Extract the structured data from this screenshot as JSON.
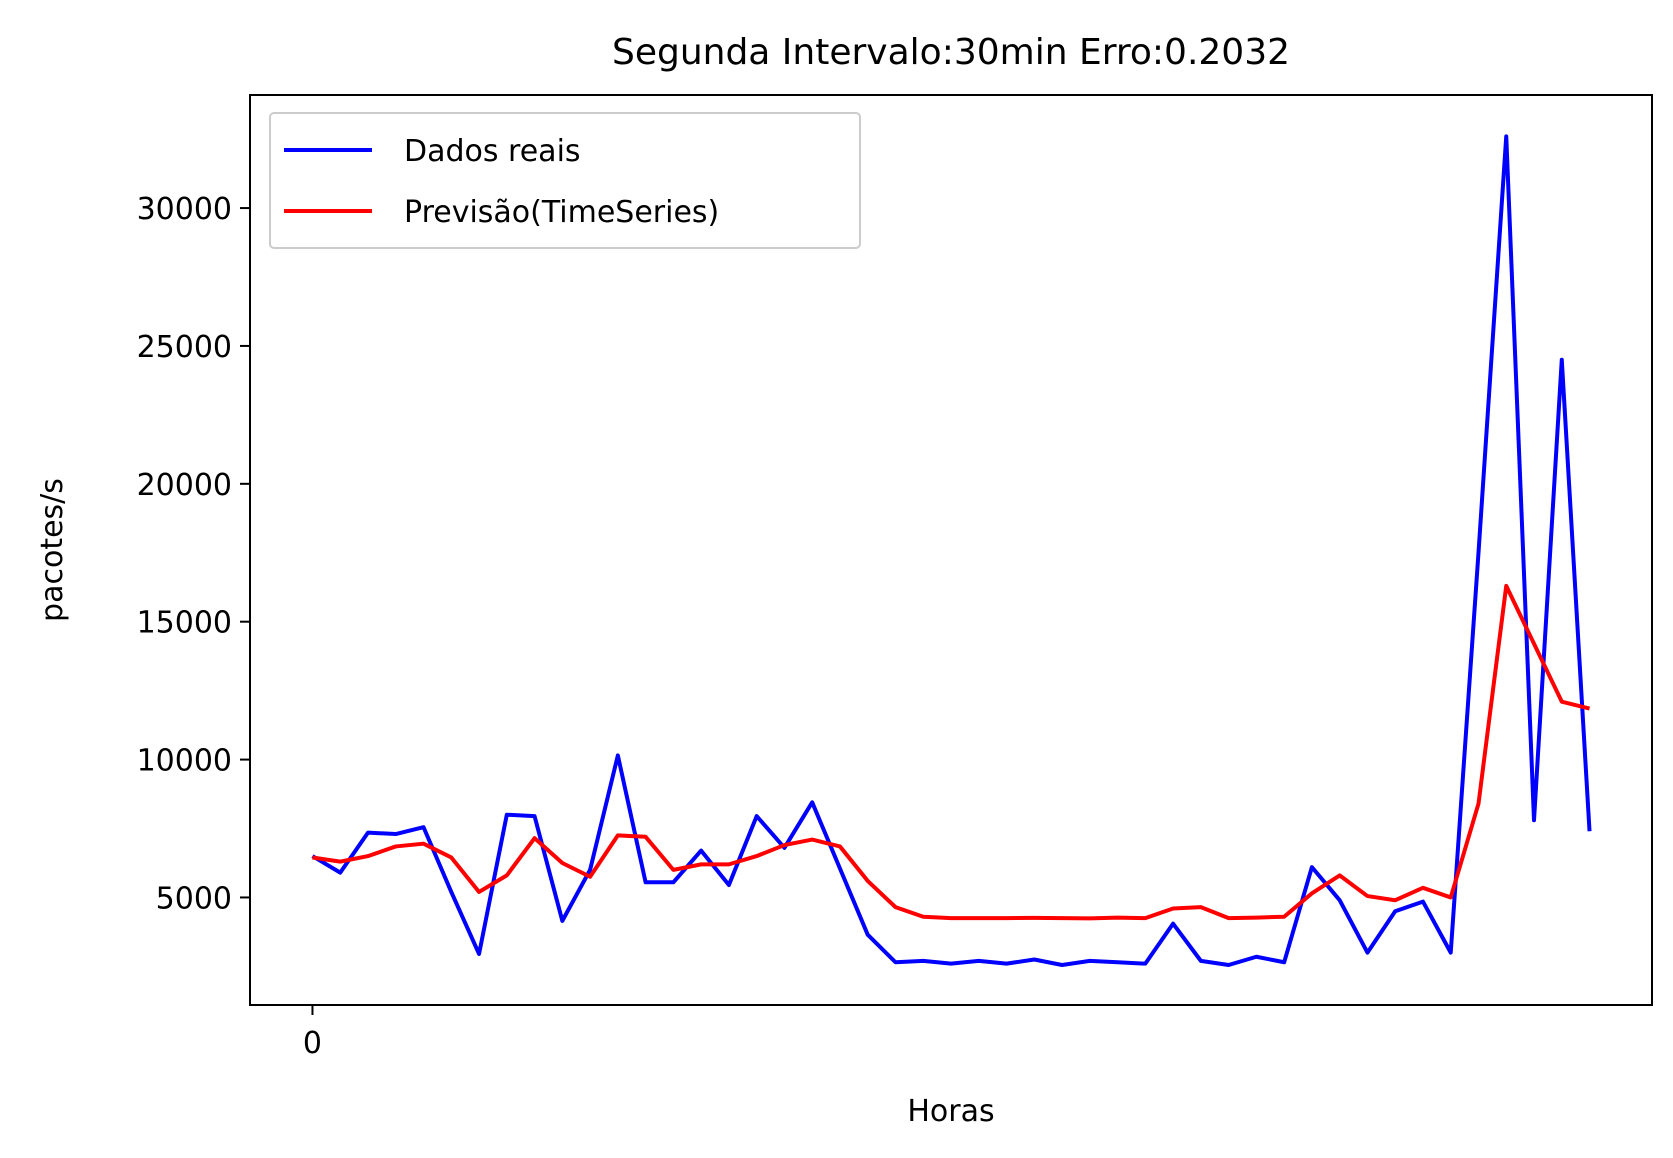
{
  "chart_data": {
    "type": "line",
    "title": "Segunda Intervalo:30min Erro:0.2032",
    "xlabel": "Horas",
    "ylabel": "pacotes/s",
    "xlim": [
      -2.25,
      48.25
    ],
    "ylim": [
      1100,
      34100
    ],
    "xticks": [
      0
    ],
    "xtick_labels": [
      "0"
    ],
    "yticks": [
      5000,
      10000,
      15000,
      20000,
      25000,
      30000
    ],
    "ytick_labels": [
      "5000",
      "10000",
      "15000",
      "20000",
      "25000",
      "30000"
    ],
    "grid": false,
    "legend_position": "upper-left",
    "x": [
      0,
      1,
      2,
      3,
      4,
      5,
      6,
      7,
      8,
      9,
      10,
      11,
      12,
      13,
      14,
      15,
      16,
      17,
      18,
      19,
      20,
      21,
      22,
      23,
      24,
      25,
      26,
      27,
      28,
      29,
      30,
      31,
      32,
      33,
      34,
      35,
      36,
      37,
      38,
      39,
      40,
      41,
      42,
      43,
      44,
      45,
      46
    ],
    "series": [
      {
        "name": "Dados reais",
        "color": "#0000ff",
        "values": [
          6500,
          5900,
          7350,
          7300,
          7550,
          5200,
          2950,
          8000,
          7950,
          4150,
          6000,
          10150,
          5550,
          5550,
          6700,
          5450,
          7950,
          6800,
          8450,
          6050,
          3650,
          2650,
          2700,
          2600,
          2700,
          2600,
          2750,
          2550,
          2700,
          2650,
          2600,
          4050,
          2700,
          2550,
          2850,
          2650,
          6100,
          4900,
          3000,
          4500,
          4850,
          3000,
          17500,
          32600,
          7800,
          24500,
          7400
        ]
      },
      {
        "name": "Previsão(TimeSeries)",
        "color": "#ff0000",
        "values": [
          6450,
          6300,
          6500,
          6850,
          6950,
          6450,
          5200,
          5800,
          7150,
          6250,
          5750,
          7250,
          7200,
          6000,
          6200,
          6200,
          6500,
          6900,
          7100,
          6850,
          5600,
          4650,
          4300,
          4250,
          4250,
          4250,
          4260,
          4250,
          4240,
          4270,
          4250,
          4600,
          4650,
          4250,
          4270,
          4300,
          5150,
          5800,
          5050,
          4900,
          5350,
          5000,
          8400,
          16300,
          14200,
          12100,
          11850
        ]
      }
    ]
  }
}
